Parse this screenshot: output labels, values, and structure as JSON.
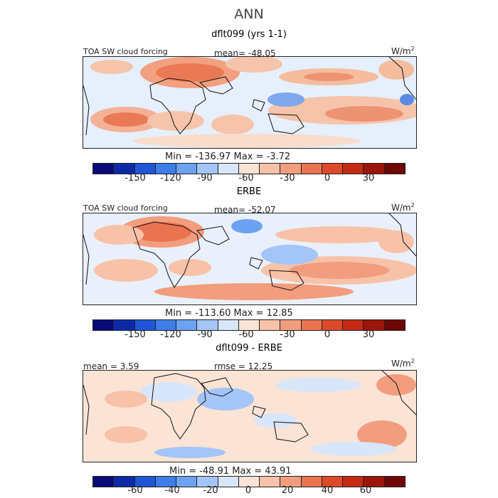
{
  "figure_title": "ANN",
  "panels": [
    {
      "title": "dflt099 (yrs 1-1)",
      "field_label": "TOA SW cloud forcing",
      "center_label": "mean= -48.05",
      "units_label": "W/m",
      "units_exponent": "2",
      "stats_label": "Min = -136.97 Max =  -3.72",
      "colorbar_ticks": [
        "-150",
        "-120",
        "-90",
        "-60",
        "-30",
        "0",
        "30"
      ]
    },
    {
      "title": "ERBE",
      "field_label": "TOA SW cloud forcing",
      "center_label": "mean= -52.07",
      "units_label": "W/m",
      "units_exponent": "2",
      "stats_label": "Min = -113.60 Max =  12.85",
      "colorbar_ticks": [
        "-150",
        "-120",
        "-90",
        "-60",
        "-30",
        "0",
        "30"
      ]
    },
    {
      "title": "dflt099 - ERBE",
      "left_label": "mean =   3.59",
      "center_label": "rmse =  12.25",
      "units_label": "W/m",
      "units_exponent": "2",
      "stats_label": "Min = -48.91 Max =  43.91",
      "colorbar_ticks": [
        "-60",
        "-40",
        "-20",
        "0",
        "20",
        "40",
        "60"
      ]
    }
  ],
  "colorbar_colors": [
    "#0a0a78",
    "#0c2aa8",
    "#1f55d6",
    "#3d7ee8",
    "#6ca2f2",
    "#a3c5f8",
    "#d8e6fb",
    "#fbe4d6",
    "#f8c2a8",
    "#f29d7d",
    "#ea7350",
    "#dd4a2a",
    "#c42a14",
    "#9c140a",
    "#6e0606"
  ]
}
